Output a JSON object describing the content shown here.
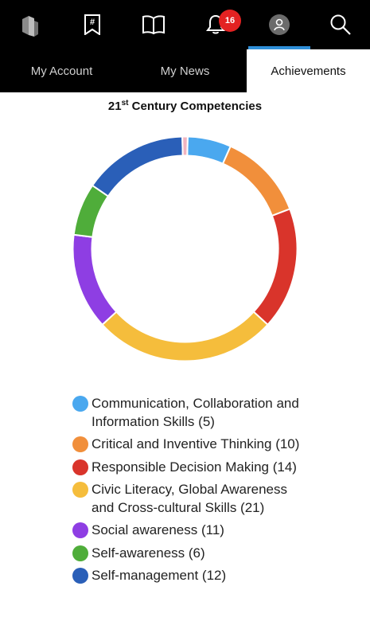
{
  "topbar": {
    "icons": [
      "logo-icon",
      "bookmark-hashtag-icon",
      "book-icon",
      "bell-icon",
      "profile-icon",
      "search-icon"
    ],
    "notification_count": "16",
    "active_color": "#2f8fd8"
  },
  "tabs": [
    {
      "label": "My Account",
      "active": false
    },
    {
      "label": "My News",
      "active": false
    },
    {
      "label": "Achievements",
      "active": true
    }
  ],
  "chart_title": {
    "prefix": "21",
    "sup": "st",
    "rest": " Century Competencies"
  },
  "chart_data": {
    "type": "pie",
    "title": "21st Century Competencies",
    "categories": [
      "Communication, Collaboration and Information Skills",
      "Critical and Inventive Thinking",
      "Responsible Decision Making",
      "Civic Literacy, Global Awareness and Cross-cultural Skills",
      "Social awareness",
      "Self-awareness",
      "Self-management",
      ""
    ],
    "values": [
      5,
      10,
      14,
      21,
      11,
      6,
      12,
      0.6
    ],
    "colors": [
      "#4aa8ef",
      "#f18f3b",
      "#d9342b",
      "#f5bd3c",
      "#8e3ee3",
      "#4fad3a",
      "#2a5fb8",
      "#f0b4c0"
    ],
    "legend_placement": "bottom"
  },
  "legend": [
    {
      "label": "Communication, Collaboration and Information Skills (5)",
      "color": "#4aa8ef"
    },
    {
      "label": "Critical and Inventive Thinking (10)",
      "color": "#f18f3b"
    },
    {
      "label": "Responsible Decision Making (14)",
      "color": "#d9342b"
    },
    {
      "label": "Civic Literacy, Global Awareness and Cross-cultural Skills (21)",
      "color": "#f5bd3c"
    },
    {
      "label": "Social awareness (11)",
      "color": "#8e3ee3"
    },
    {
      "label": "Self-awareness (6)",
      "color": "#4fad3a"
    },
    {
      "label": "Self-management (12)",
      "color": "#2a5fb8"
    }
  ]
}
